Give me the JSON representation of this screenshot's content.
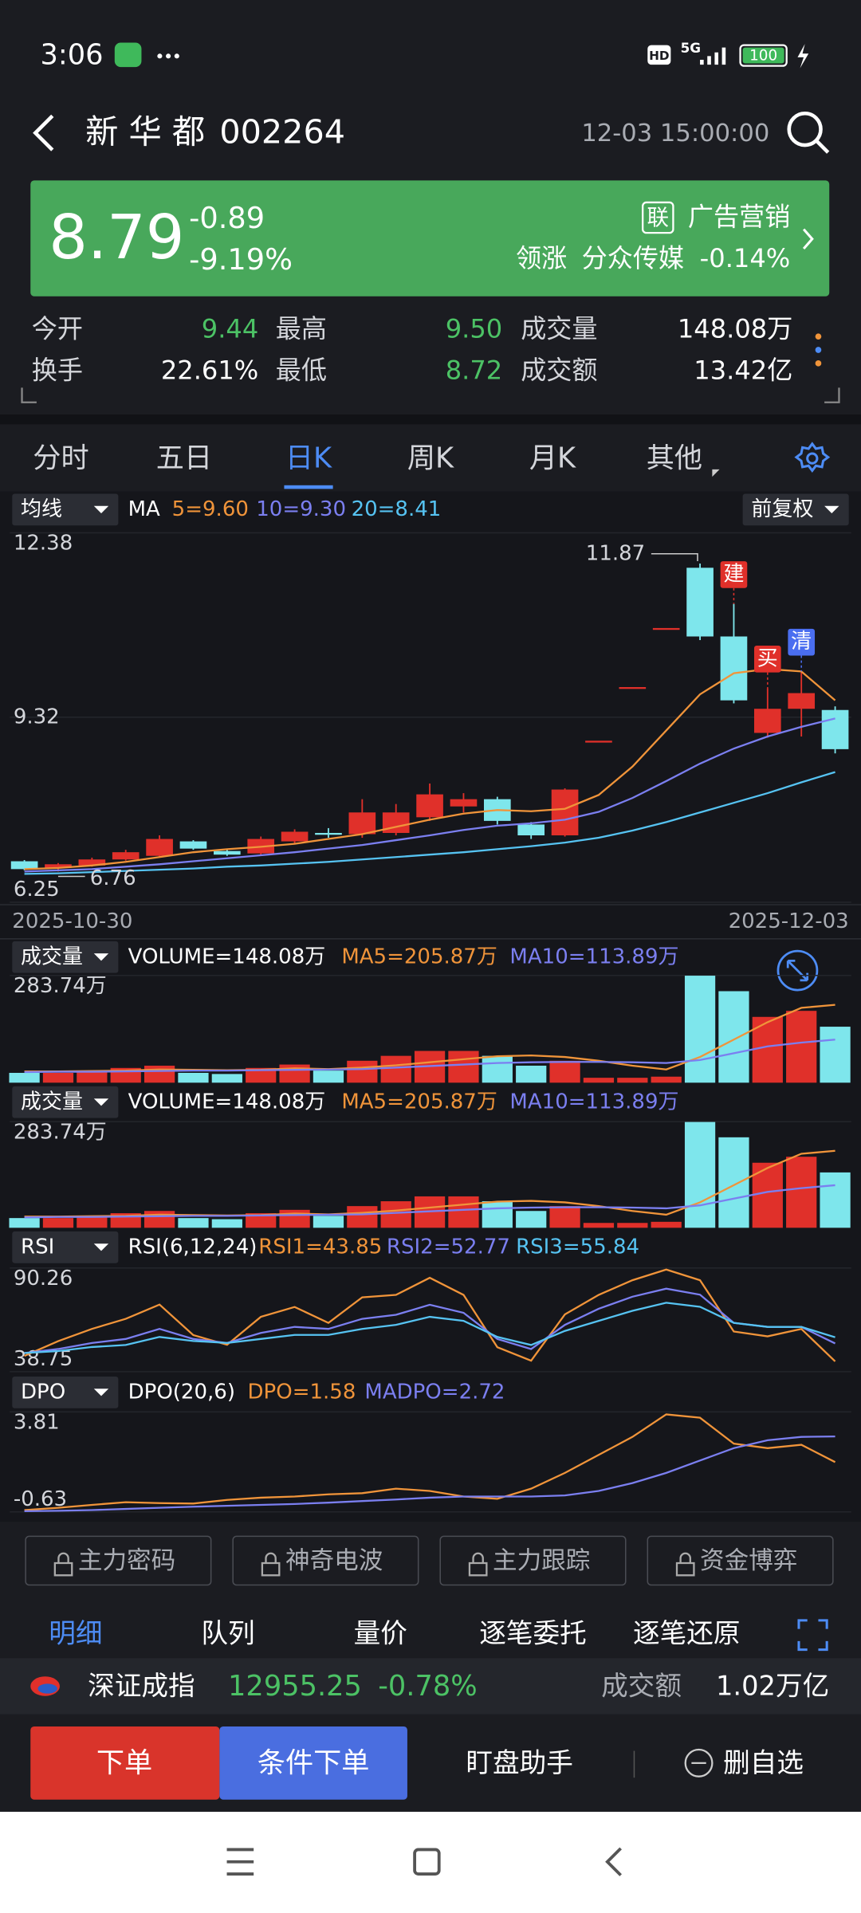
{
  "status_bar": {
    "time": "3:06",
    "hd": "HD",
    "network": "5G",
    "battery": "100"
  },
  "header": {
    "name": "新 华 都",
    "code": "002264",
    "datetime": "12-03 15:00:00"
  },
  "quote": {
    "price": "8.79",
    "change": "-0.89",
    "change_pct": "-9.19%",
    "sector_tag": "联",
    "sector": "广告营销",
    "leader_label": "领涨",
    "leader_name": "分众传媒",
    "leader_pct": "-0.14%"
  },
  "stats": [
    {
      "label": "今开",
      "value": "9.44"
    },
    {
      "label": "最高",
      "value": "9.50"
    },
    {
      "label": "成交量",
      "value": "148.08万"
    },
    {
      "label": "换手",
      "value": "22.61%"
    },
    {
      "label": "最低",
      "value": "8.72"
    },
    {
      "label": "成交额",
      "value": "13.42亿"
    }
  ],
  "tabs": {
    "items": [
      "分时",
      "五日",
      "日K",
      "周K",
      "月K",
      "其他"
    ],
    "active": 2
  },
  "chart_data": [
    {
      "type": "candlestick",
      "indicator_button": "均线",
      "legend_prefix": "MA",
      "adjust_button": "前复权",
      "open": [
        6.93,
        6.82,
        6.86,
        6.96,
        7.02,
        7.26,
        7.1,
        7.06,
        7.26,
        7.4,
        7.38,
        7.4,
        7.66,
        7.84,
        7.96,
        7.54,
        7.36,
        8.93,
        9.82,
        10.8,
        11.8,
        10.66,
        9.06,
        9.46,
        9.44
      ],
      "high": [
        6.95,
        6.9,
        6.99,
        7.12,
        7.36,
        7.28,
        7.12,
        7.34,
        7.46,
        7.48,
        7.96,
        7.88,
        8.22,
        8.06,
        8.0,
        7.58,
        8.14,
        8.93,
        9.82,
        10.8,
        11.87,
        11.2,
        9.8,
        10.08,
        9.5
      ],
      "low": [
        6.78,
        6.76,
        6.84,
        6.94,
        7.0,
        7.12,
        7.02,
        7.04,
        7.22,
        7.32,
        7.32,
        7.36,
        7.6,
        7.74,
        7.54,
        7.3,
        7.34,
        8.93,
        9.82,
        10.8,
        10.6,
        9.55,
        8.98,
        9.0,
        8.72
      ],
      "close": [
        6.8,
        6.88,
        6.96,
        7.08,
        7.3,
        7.14,
        7.04,
        7.3,
        7.42,
        7.38,
        7.74,
        7.74,
        8.04,
        7.96,
        7.6,
        7.36,
        8.12,
        8.93,
        9.82,
        10.8,
        10.66,
        9.6,
        9.46,
        9.72,
        8.79
      ],
      "up_color": "#e0302a",
      "down_color": "#7ee6ec",
      "series": [
        {
          "name": "5=9.60",
          "color": "#f0943a",
          "values": [
            6.8,
            6.82,
            6.86,
            6.92,
            7.0,
            7.08,
            7.13,
            7.17,
            7.22,
            7.3,
            7.38,
            7.5,
            7.62,
            7.72,
            7.78,
            7.76,
            7.8,
            8.03,
            8.5,
            9.1,
            9.7,
            10.05,
            10.12,
            10.08,
            9.6
          ]
        },
        {
          "name": "10=9.30",
          "color": "#7b7ff0",
          "values": [
            6.76,
            6.78,
            6.8,
            6.84,
            6.88,
            6.93,
            6.98,
            7.03,
            7.08,
            7.14,
            7.2,
            7.28,
            7.36,
            7.45,
            7.52,
            7.56,
            7.62,
            7.75,
            7.98,
            8.26,
            8.55,
            8.8,
            9.0,
            9.16,
            9.3
          ]
        },
        {
          "name": "20=8.41",
          "color": "#56c3f2",
          "values": [
            6.72,
            6.73,
            6.75,
            6.77,
            6.79,
            6.81,
            6.84,
            6.86,
            6.89,
            6.92,
            6.96,
            7.0,
            7.04,
            7.08,
            7.13,
            7.18,
            7.24,
            7.32,
            7.44,
            7.58,
            7.74,
            7.9,
            8.06,
            8.24,
            8.41
          ]
        }
      ],
      "ylim": [
        6.25,
        12.38
      ],
      "yticks": [
        12.38,
        9.32,
        6.25
      ],
      "x_labels": [
        "2025-10-30",
        "2025-12-03"
      ],
      "high_label": 11.87,
      "low_label": 6.76,
      "markers": [
        {
          "text": "建",
          "index": 21,
          "color": "#e0302a"
        },
        {
          "text": "买",
          "index": 22,
          "color": "#e0302a"
        },
        {
          "text": "清",
          "index": 23,
          "color": "#4a6ef0"
        }
      ]
    },
    {
      "type": "volume",
      "indicator_button": "成交量",
      "title": "VOLUME=148.08万",
      "values": [
        26,
        26,
        32,
        39,
        45,
        26,
        23,
        39,
        48,
        32,
        58,
        71,
        84,
        84,
        71,
        45,
        58,
        13,
        13,
        16,
        283,
        242,
        174,
        190,
        148.08
      ],
      "ylim": [
        0,
        283.74
      ],
      "yticks": [
        {
          "value": 283.74,
          "label": "283.74万"
        }
      ],
      "series": [
        {
          "name": "MA5=205.87万",
          "color": "#f0943a",
          "values": [
            30,
            30,
            31,
            32,
            35,
            34,
            33,
            34,
            38,
            36,
            40,
            46,
            54,
            62,
            70,
            72,
            68,
            58,
            45,
            35,
            68,
            114,
            160,
            198,
            205.87
          ]
        },
        {
          "name": "MA10=113.89万",
          "color": "#7b7ff0",
          "values": [
            28,
            29,
            29,
            30,
            31,
            32,
            32,
            33,
            34,
            35,
            36,
            40,
            44,
            48,
            52,
            54,
            55,
            55,
            54,
            52,
            60,
            78,
            96,
            106,
            113.89
          ]
        }
      ]
    },
    {
      "type": "volume",
      "indicator_button": "成交量",
      "title": "VOLUME=148.08万",
      "values": [
        26,
        26,
        32,
        39,
        45,
        26,
        23,
        39,
        48,
        32,
        58,
        71,
        84,
        84,
        71,
        45,
        58,
        13,
        13,
        16,
        283,
        242,
        174,
        190,
        148.08
      ],
      "ylim": [
        0,
        283.74
      ],
      "yticks": [
        {
          "value": 283.74,
          "label": "283.74万"
        }
      ],
      "series": [
        {
          "name": "MA5=205.87万",
          "color": "#f0943a",
          "values": [
            30,
            30,
            31,
            32,
            35,
            34,
            33,
            34,
            38,
            36,
            40,
            46,
            54,
            62,
            70,
            72,
            68,
            58,
            45,
            35,
            68,
            114,
            160,
            198,
            205.87
          ]
        },
        {
          "name": "MA10=113.89万",
          "color": "#7b7ff0",
          "values": [
            28,
            29,
            29,
            30,
            31,
            32,
            32,
            33,
            34,
            35,
            36,
            40,
            44,
            48,
            52,
            54,
            55,
            55,
            54,
            52,
            60,
            78,
            96,
            106,
            113.89
          ]
        }
      ]
    },
    {
      "type": "line",
      "indicator_button": "RSI",
      "title": "RSI(6,12,24)",
      "ylim": [
        38.75,
        90.26
      ],
      "yticks": [
        90.26,
        38.75
      ],
      "series": [
        {
          "name": "RSI1=43.85",
          "color": "#f0943a",
          "values": [
            46.6,
            53.9,
            60.0,
            65.0,
            72.1,
            56.9,
            52.1,
            66.0,
            70.9,
            63.0,
            75.7,
            76.9,
            85.4,
            76.9,
            50.9,
            44.2,
            67.2,
            76.9,
            84.2,
            89.5,
            84.2,
            58.7,
            56.3,
            60.0,
            43.85
          ]
        },
        {
          "name": "RSI2=52.77",
          "color": "#7b7ff0",
          "values": [
            48,
            50,
            53,
            55,
            60,
            55,
            53,
            58,
            61,
            60,
            65,
            67,
            72,
            68,
            55,
            50,
            62,
            70,
            76,
            80,
            77,
            63,
            61,
            61,
            52.77
          ]
        },
        {
          "name": "RSI3=55.84",
          "color": "#56c3f2",
          "values": [
            48,
            49,
            51,
            52,
            56,
            54,
            53,
            55,
            57,
            57,
            60,
            62,
            66,
            64,
            56,
            52,
            59,
            64,
            69,
            73,
            71,
            63,
            61,
            61,
            55.84
          ]
        }
      ]
    },
    {
      "type": "line",
      "indicator_button": "DPO",
      "title": "DPO(20,6)",
      "ylim": [
        -0.63,
        3.81
      ],
      "yticks": [
        3.81,
        -0.63
      ],
      "series": [
        {
          "name": "DPO=1.58",
          "color": "#f0943a",
          "values": [
            -0.55,
            -0.45,
            -0.32,
            -0.2,
            -0.24,
            -0.26,
            -0.1,
            0.0,
            0.05,
            0.15,
            0.2,
            0.4,
            0.3,
            0.05,
            -0.05,
            0.4,
            1.1,
            1.9,
            2.7,
            3.7,
            3.55,
            2.4,
            2.2,
            2.35,
            1.58
          ]
        },
        {
          "name": "MADPO=2.72",
          "color": "#7b7ff0",
          "values": [
            -0.6,
            -0.58,
            -0.55,
            -0.5,
            -0.45,
            -0.4,
            -0.36,
            -0.32,
            -0.28,
            -0.22,
            -0.15,
            -0.08,
            0.0,
            0.05,
            0.05,
            0.05,
            0.1,
            0.3,
            0.65,
            1.1,
            1.65,
            2.2,
            2.55,
            2.7,
            2.72
          ]
        }
      ]
    }
  ],
  "feature_buttons": [
    "主力密码",
    "神奇电波",
    "主力跟踪",
    "资金博弈"
  ],
  "detail_tabs": {
    "items": [
      "明细",
      "队列",
      "量价",
      "逐笔委托",
      "逐笔还原"
    ],
    "active": 0
  },
  "index_bar": {
    "name": "深证成指",
    "value": "12955.25",
    "change_pct": "-0.78%",
    "turnover_label": "成交额",
    "turnover": "1.02万亿"
  },
  "actions": [
    "下单",
    "条件下单",
    "盯盘助手",
    "删自选"
  ]
}
